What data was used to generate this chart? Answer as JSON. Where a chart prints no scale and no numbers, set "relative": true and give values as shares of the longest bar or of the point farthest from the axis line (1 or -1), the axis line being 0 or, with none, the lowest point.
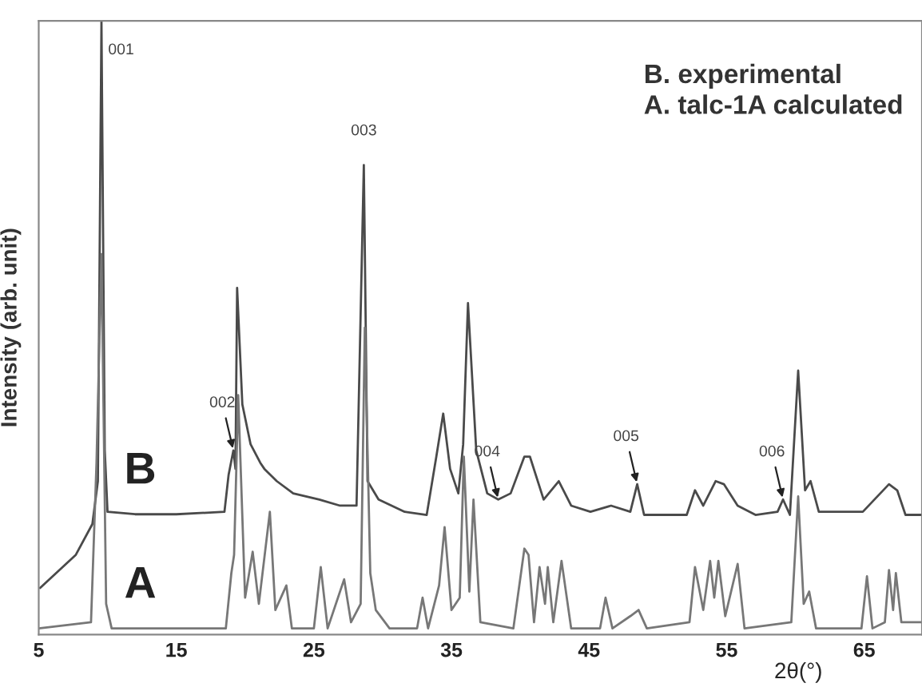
{
  "chart_data": {
    "type": "line",
    "relative": true,
    "xlabel": "2θ(°)",
    "ylabel": "Intensity (arb. unit)",
    "xlim": [
      5,
      69.2
    ],
    "xticks": [
      5,
      15,
      25,
      35,
      45,
      55,
      65
    ],
    "grid": false,
    "legend": false,
    "marker": "none",
    "line_style": "solid",
    "series": [
      {
        "name": "B",
        "color": "#4a4a4a",
        "x": [
          5.1,
          7.7,
          8.9,
          9.3,
          9.56,
          9.8,
          10.0,
          12,
          15,
          18.5,
          18.8,
          19.15,
          19.3,
          19.42,
          19.8,
          20.4,
          21.1,
          21.4,
          22.3,
          23.5,
          25.4,
          26.9,
          28.1,
          28.63,
          28.9,
          29.7,
          31.6,
          33.2,
          33.9,
          34.4,
          34.9,
          35.5,
          35.85,
          36.2,
          36.8,
          37.6,
          38.4,
          39.3,
          40.3,
          40.7,
          41.7,
          42.8,
          43.7,
          45.1,
          46.6,
          48.0,
          48.5,
          49.0,
          52.1,
          52.7,
          53.3,
          54.2,
          54.8,
          55.8,
          57.1,
          58.7,
          59.1,
          59.6,
          60.2,
          60.7,
          61.1,
          61.7,
          64.9,
          66.8,
          67.4,
          68.0,
          69.2
        ],
        "values": [
          0.076,
          0.13,
          0.18,
          0.25,
          1.0,
          0.3,
          0.2,
          0.196,
          0.196,
          0.2,
          0.26,
          0.3,
          0.27,
          0.565,
          0.375,
          0.31,
          0.28,
          0.27,
          0.25,
          0.23,
          0.22,
          0.21,
          0.21,
          0.765,
          0.25,
          0.22,
          0.2,
          0.195,
          0.29,
          0.36,
          0.27,
          0.23,
          0.31,
          0.54,
          0.3,
          0.23,
          0.22,
          0.23,
          0.29,
          0.29,
          0.22,
          0.25,
          0.21,
          0.2,
          0.21,
          0.2,
          0.245,
          0.195,
          0.195,
          0.235,
          0.21,
          0.25,
          0.245,
          0.21,
          0.195,
          0.2,
          0.22,
          0.195,
          0.43,
          0.235,
          0.25,
          0.2,
          0.2,
          0.245,
          0.235,
          0.195,
          0.195
        ]
      },
      {
        "name": "A",
        "color": "#777777",
        "x": [
          5,
          8.8,
          9.2,
          9.56,
          9.9,
          10.3,
          18.6,
          19.0,
          19.2,
          19.5,
          20.0,
          20.55,
          21.0,
          21.8,
          22.2,
          23.0,
          23.4,
          25.0,
          25.5,
          26.0,
          27.2,
          27.7,
          28.4,
          28.7,
          29.1,
          29.5,
          30.5,
          32.5,
          32.9,
          33.3,
          34.1,
          34.5,
          35.0,
          35.6,
          35.9,
          36.3,
          36.6,
          37.1,
          39.5,
          40.3,
          40.6,
          41.0,
          41.4,
          41.8,
          42.0,
          42.4,
          43.0,
          43.7,
          45.8,
          46.2,
          46.7,
          48.0,
          48.6,
          49.2,
          52.3,
          52.7,
          53.3,
          53.8,
          54.1,
          54.4,
          54.9,
          55.8,
          56.3,
          59.7,
          60.2,
          60.6,
          61.0,
          61.5,
          64.8,
          65.2,
          65.6,
          66.5,
          66.8,
          67.1,
          67.3,
          67.7,
          69.2
        ],
        "values": [
          0.01,
          0.02,
          0.28,
          0.62,
          0.05,
          0.01,
          0.01,
          0.1,
          0.13,
          0.39,
          0.06,
          0.135,
          0.05,
          0.2,
          0.04,
          0.08,
          0.01,
          0.01,
          0.11,
          0.01,
          0.09,
          0.02,
          0.05,
          0.5,
          0.1,
          0.04,
          0.01,
          0.01,
          0.06,
          0.01,
          0.08,
          0.175,
          0.04,
          0.06,
          0.29,
          0.07,
          0.22,
          0.02,
          0.01,
          0.14,
          0.13,
          0.02,
          0.11,
          0.05,
          0.11,
          0.02,
          0.12,
          0.01,
          0.01,
          0.06,
          0.01,
          0.03,
          0.04,
          0.01,
          0.02,
          0.11,
          0.04,
          0.12,
          0.06,
          0.12,
          0.03,
          0.115,
          0.01,
          0.02,
          0.225,
          0.05,
          0.07,
          0.01,
          0.01,
          0.095,
          0.01,
          0.02,
          0.105,
          0.04,
          0.1,
          0.02,
          0.02
        ]
      }
    ],
    "annotations": [
      "B. experimental",
      "A. talc-1A calculated",
      {
        "text": "001",
        "x": 9.56,
        "y": 1.0
      },
      {
        "text": "002",
        "x": 19.15,
        "y": 0.3
      },
      {
        "text": "003",
        "x": 28.63,
        "y": 0.765
      },
      {
        "text": "004",
        "x": 38.4,
        "y": 0.22
      },
      {
        "text": "005",
        "x": 48.5,
        "y": 0.245
      },
      {
        "text": "006",
        "x": 59.1,
        "y": 0.22
      }
    ]
  }
}
